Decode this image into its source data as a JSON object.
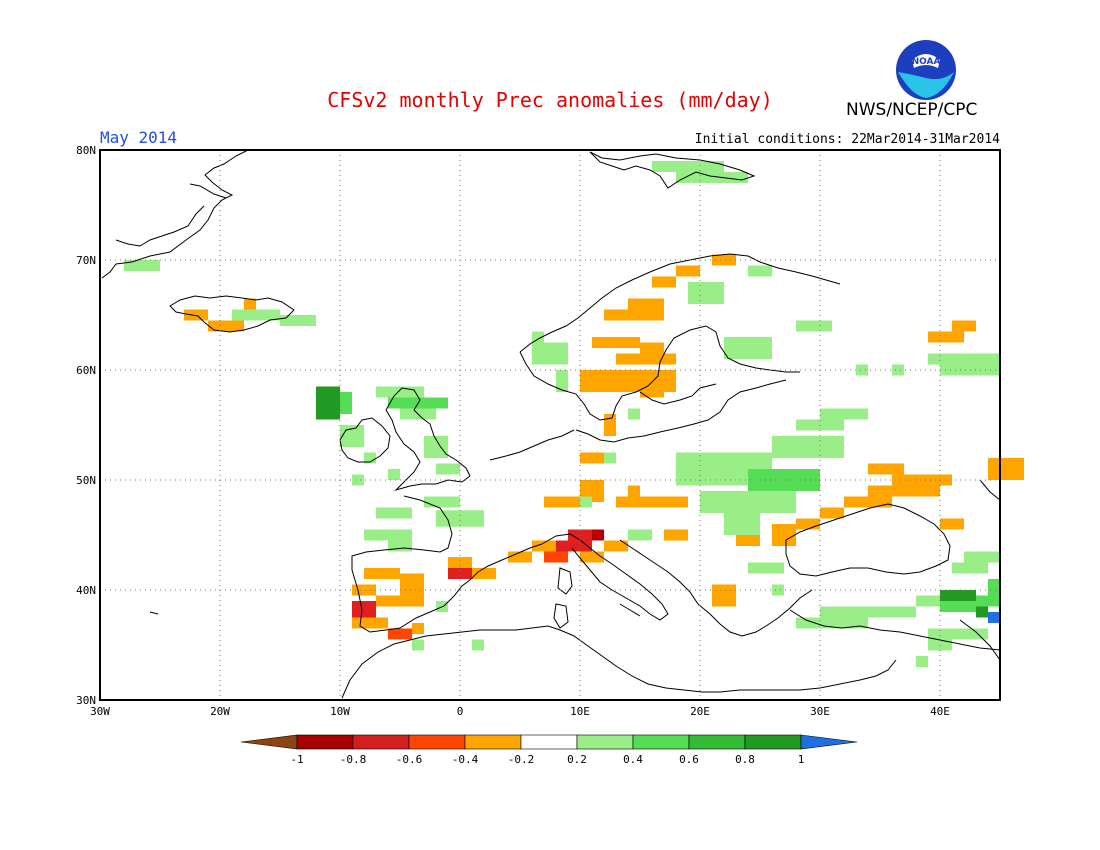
{
  "header": {
    "title": "CFSv2 monthly Prec anomalies (mm/day)",
    "org": "NWS/NCEP/CPC",
    "logo_text": "NOAA",
    "month": "May 2014",
    "initial_conditions": "Initial conditions: 22Mar2014-31Mar2014"
  },
  "map": {
    "lon_range": [
      -30,
      45
    ],
    "lat_range": [
      30,
      80
    ],
    "lat_ticks": [
      "30N",
      "40N",
      "50N",
      "60N",
      "70N",
      "80N"
    ],
    "lon_ticks": [
      "30W",
      "20W",
      "10W",
      "0",
      "10E",
      "20E",
      "30E",
      "40E"
    ],
    "grid": true,
    "anomaly_cells": [
      {
        "lon": -28,
        "lat": 69.5,
        "w": 3,
        "h": 1,
        "c": 4
      },
      {
        "lon": -23,
        "lat": 65,
        "w": 2,
        "h": 1,
        "c": 1
      },
      {
        "lon": -21,
        "lat": 64,
        "w": 3,
        "h": 1,
        "c": 1
      },
      {
        "lon": -19,
        "lat": 65,
        "w": 4,
        "h": 1,
        "c": 4
      },
      {
        "lon": -15,
        "lat": 64.5,
        "w": 3,
        "h": 1,
        "c": 4
      },
      {
        "lon": -7,
        "lat": 58,
        "w": 4,
        "h": 1,
        "c": 4
      },
      {
        "lon": -6,
        "lat": 57,
        "w": 5,
        "h": 1,
        "c": 5
      },
      {
        "lon": -5,
        "lat": 56,
        "w": 3,
        "h": 1,
        "c": 4
      },
      {
        "lon": -3,
        "lat": 53,
        "w": 2,
        "h": 2,
        "c": 4
      },
      {
        "lon": -2,
        "lat": 51,
        "w": 2,
        "h": 1,
        "c": 4
      },
      {
        "lon": -6,
        "lat": 50.5,
        "w": 1,
        "h": 1,
        "c": 4
      },
      {
        "lon": -3,
        "lat": 48,
        "w": 3,
        "h": 1,
        "c": 4
      },
      {
        "lon": -2,
        "lat": 46.5,
        "w": 4,
        "h": 1.5,
        "c": 4
      },
      {
        "lon": -8,
        "lat": 41.5,
        "w": 3,
        "h": 1,
        "c": 1
      },
      {
        "lon": -9,
        "lat": 40,
        "w": 2,
        "h": 1,
        "c": 1
      },
      {
        "lon": -9,
        "lat": 38,
        "w": 2,
        "h": 2,
        "c": 0
      },
      {
        "lon": -7,
        "lat": 39,
        "w": 4,
        "h": 1,
        "c": 1
      },
      {
        "lon": -5,
        "lat": 40,
        "w": 2,
        "h": 3,
        "c": 1
      },
      {
        "lon": -9,
        "lat": 37,
        "w": 3,
        "h": 1,
        "c": 1
      },
      {
        "lon": -6,
        "lat": 36,
        "w": 2,
        "h": 1,
        "c": 2
      },
      {
        "lon": -4,
        "lat": 36.5,
        "w": 1,
        "h": 1,
        "c": 1
      },
      {
        "lon": -1,
        "lat": 41.5,
        "w": 2,
        "h": 1,
        "c": 0
      },
      {
        "lon": -1,
        "lat": 42.5,
        "w": 2,
        "h": 1,
        "c": 1
      },
      {
        "lon": 1,
        "lat": 41.5,
        "w": 2,
        "h": 1,
        "c": 1
      },
      {
        "lon": -2,
        "lat": 38.5,
        "w": 1,
        "h": 1,
        "c": 4
      },
      {
        "lon": 1,
        "lat": 35,
        "w": 1,
        "h": 1,
        "c": 4
      },
      {
        "lon": 4,
        "lat": 43,
        "w": 2,
        "h": 1,
        "c": 1
      },
      {
        "lon": 6,
        "lat": 44,
        "w": 2,
        "h": 1,
        "c": 1
      },
      {
        "lon": 7,
        "lat": 43,
        "w": 2,
        "h": 1,
        "c": 2
      },
      {
        "lon": 8,
        "lat": 44,
        "w": 3,
        "h": 1,
        "c": 0
      },
      {
        "lon": 9,
        "lat": 45,
        "w": 3,
        "h": 1,
        "c": 0
      },
      {
        "lon": 11,
        "lat": 45,
        "w": 1,
        "h": 1,
        "c": -1
      },
      {
        "lon": 10,
        "lat": 43,
        "w": 2,
        "h": 1,
        "c": 1
      },
      {
        "lon": 12,
        "lat": 44,
        "w": 2,
        "h": 1,
        "c": 1
      },
      {
        "lon": 14,
        "lat": 45,
        "w": 2,
        "h": 1,
        "c": 4
      },
      {
        "lon": 7,
        "lat": 48,
        "w": 4,
        "h": 1,
        "c": 1
      },
      {
        "lon": 10,
        "lat": 49,
        "w": 2,
        "h": 2,
        "c": 1
      },
      {
        "lon": 10,
        "lat": 48,
        "w": 1,
        "h": 1,
        "c": 4
      },
      {
        "lon": 13,
        "lat": 48,
        "w": 6,
        "h": 1,
        "c": 1
      },
      {
        "lon": 14,
        "lat": 49,
        "w": 1,
        "h": 1,
        "c": 1
      },
      {
        "lon": 10,
        "lat": 52,
        "w": 2,
        "h": 1,
        "c": 1
      },
      {
        "lon": 12,
        "lat": 55,
        "w": 1,
        "h": 2,
        "c": 1
      },
      {
        "lon": 10,
        "lat": 59,
        "w": 8,
        "h": 2,
        "c": 1
      },
      {
        "lon": 13,
        "lat": 61,
        "w": 5,
        "h": 1,
        "c": 1
      },
      {
        "lon": 15,
        "lat": 62,
        "w": 2,
        "h": 1,
        "c": 1
      },
      {
        "lon": 11,
        "lat": 62.5,
        "w": 4,
        "h": 1,
        "c": 1
      },
      {
        "lon": 12,
        "lat": 65,
        "w": 5,
        "h": 1,
        "c": 1
      },
      {
        "lon": 14,
        "lat": 66,
        "w": 3,
        "h": 1,
        "c": 1
      },
      {
        "lon": 16,
        "lat": 68,
        "w": 2,
        "h": 1,
        "c": 1
      },
      {
        "lon": 18,
        "lat": 69,
        "w": 2,
        "h": 1,
        "c": 1
      },
      {
        "lon": 21,
        "lat": 70,
        "w": 2,
        "h": 1,
        "c": 1
      },
      {
        "lon": 15,
        "lat": 58,
        "w": 2,
        "h": 1,
        "c": 1
      },
      {
        "lon": 17,
        "lat": 45,
        "w": 2,
        "h": 1,
        "c": 1
      },
      {
        "lon": 21,
        "lat": 39.5,
        "w": 2,
        "h": 2,
        "c": 1
      },
      {
        "lon": 23,
        "lat": 45,
        "w": 2,
        "h": 2,
        "c": 1
      },
      {
        "lon": 26,
        "lat": 45,
        "w": 2,
        "h": 2,
        "c": 1
      },
      {
        "lon": 28,
        "lat": 46,
        "w": 2,
        "h": 1,
        "c": 1
      },
      {
        "lon": 30,
        "lat": 47,
        "w": 2,
        "h": 1,
        "c": 1
      },
      {
        "lon": 32,
        "lat": 48,
        "w": 4,
        "h": 1,
        "c": 1
      },
      {
        "lon": 34,
        "lat": 49,
        "w": 6,
        "h": 1,
        "c": 1
      },
      {
        "lon": 36,
        "lat": 50,
        "w": 5,
        "h": 1,
        "c": 1
      },
      {
        "lon": 34,
        "lat": 51,
        "w": 3,
        "h": 1,
        "c": 1
      },
      {
        "lon": 40,
        "lat": 46,
        "w": 2,
        "h": 1,
        "c": 1
      },
      {
        "lon": 44,
        "lat": 51,
        "w": 3,
        "h": 2,
        "c": 1
      },
      {
        "lon": 39,
        "lat": 63,
        "w": 3,
        "h": 1,
        "c": 1
      },
      {
        "lon": 41,
        "lat": 64,
        "w": 2,
        "h": 1,
        "c": 1
      },
      {
        "lon": -18,
        "lat": 66,
        "w": 1,
        "h": 1,
        "c": 1
      },
      {
        "lon": -12,
        "lat": 57,
        "w": 2,
        "h": 3,
        "c": 6
      },
      {
        "lon": -10,
        "lat": 57,
        "w": 1,
        "h": 2,
        "c": 5
      },
      {
        "lon": -10,
        "lat": 54,
        "w": 2,
        "h": 2,
        "c": 4
      },
      {
        "lon": -8,
        "lat": 52,
        "w": 1,
        "h": 1,
        "c": 4
      },
      {
        "lon": -9,
        "lat": 50,
        "w": 1,
        "h": 1,
        "c": 4
      },
      {
        "lon": -7,
        "lat": 47,
        "w": 3,
        "h": 1,
        "c": 4
      },
      {
        "lon": -8,
        "lat": 45,
        "w": 4,
        "h": 1,
        "c": 4
      },
      {
        "lon": -6,
        "lat": 44,
        "w": 2,
        "h": 1,
        "c": 4
      },
      {
        "lon": -4,
        "lat": 35,
        "w": 1,
        "h": 1,
        "c": 4
      },
      {
        "lon": 6,
        "lat": 62,
        "w": 1,
        "h": 3,
        "c": 4
      },
      {
        "lon": 7,
        "lat": 61,
        "w": 2,
        "h": 1,
        "c": 4
      },
      {
        "lon": 18,
        "lat": 51,
        "w": 8,
        "h": 3,
        "c": 4
      },
      {
        "lon": 24,
        "lat": 50,
        "w": 6,
        "h": 2,
        "c": 5
      },
      {
        "lon": 26,
        "lat": 53,
        "w": 6,
        "h": 2,
        "c": 4
      },
      {
        "lon": 28,
        "lat": 55,
        "w": 4,
        "h": 1,
        "c": 4
      },
      {
        "lon": 30,
        "lat": 56,
        "w": 4,
        "h": 1,
        "c": 4
      },
      {
        "lon": 20,
        "lat": 48,
        "w": 8,
        "h": 2,
        "c": 4
      },
      {
        "lon": 22,
        "lat": 46,
        "w": 3,
        "h": 2,
        "c": 4
      },
      {
        "lon": 24,
        "lat": 42,
        "w": 3,
        "h": 1,
        "c": 4
      },
      {
        "lon": 26,
        "lat": 40,
        "w": 1,
        "h": 1,
        "c": 4
      },
      {
        "lon": 30,
        "lat": 38,
        "w": 8,
        "h": 1,
        "c": 4
      },
      {
        "lon": 28,
        "lat": 37,
        "w": 6,
        "h": 1,
        "c": 4
      },
      {
        "lon": 36,
        "lat": 38,
        "w": 2,
        "h": 1,
        "c": 4
      },
      {
        "lon": 38,
        "lat": 39,
        "w": 2,
        "h": 1,
        "c": 4
      },
      {
        "lon": 40,
        "lat": 38.5,
        "w": 3,
        "h": 1,
        "c": 5
      },
      {
        "lon": 40,
        "lat": 39.5,
        "w": 3,
        "h": 1,
        "c": 6
      },
      {
        "lon": 43,
        "lat": 39,
        "w": 2,
        "h": 1,
        "c": 5
      },
      {
        "lon": 43,
        "lat": 38,
        "w": 1,
        "h": 1,
        "c": 6
      },
      {
        "lon": 44,
        "lat": 37.5,
        "w": 1,
        "h": 1,
        "c": 7
      },
      {
        "lon": 41,
        "lat": 42,
        "w": 3,
        "h": 1,
        "c": 4
      },
      {
        "lon": 42,
        "lat": 43,
        "w": 3,
        "h": 1,
        "c": 4
      },
      {
        "lon": 44,
        "lat": 40,
        "w": 1,
        "h": 2,
        "c": 5
      },
      {
        "lon": 39,
        "lat": 36,
        "w": 5,
        "h": 1,
        "c": 4
      },
      {
        "lon": 39,
        "lat": 35,
        "w": 2,
        "h": 1,
        "c": 4
      },
      {
        "lon": 38,
        "lat": 33.5,
        "w": 1,
        "h": 1,
        "c": 4
      },
      {
        "lon": 33,
        "lat": 60,
        "w": 1,
        "h": 1,
        "c": 4
      },
      {
        "lon": 36,
        "lat": 60,
        "w": 1,
        "h": 1,
        "c": 4
      },
      {
        "lon": 39,
        "lat": 61,
        "w": 6,
        "h": 1,
        "c": 4
      },
      {
        "lon": 40,
        "lat": 60,
        "w": 5,
        "h": 1,
        "c": 4
      },
      {
        "lon": 22,
        "lat": 62,
        "w": 4,
        "h": 2,
        "c": 4
      },
      {
        "lon": 28,
        "lat": 64,
        "w": 3,
        "h": 1,
        "c": 4
      },
      {
        "lon": 19,
        "lat": 67,
        "w": 3,
        "h": 2,
        "c": 4
      },
      {
        "lon": 24,
        "lat": 69,
        "w": 2,
        "h": 1,
        "c": 4
      },
      {
        "lon": 16,
        "lat": 78.5,
        "w": 6,
        "h": 1,
        "c": 4
      },
      {
        "lon": 18,
        "lat": 77.5,
        "w": 6,
        "h": 1,
        "c": 4
      },
      {
        "lon": 7,
        "lat": 62,
        "w": 2,
        "h": 1,
        "c": 4
      },
      {
        "lon": 8,
        "lat": 59,
        "w": 1,
        "h": 2,
        "c": 4
      },
      {
        "lon": 12,
        "lat": 52,
        "w": 1,
        "h": 1,
        "c": 4
      },
      {
        "lon": 14,
        "lat": 56,
        "w": 1,
        "h": 1,
        "c": 4
      }
    ]
  },
  "colorbar": {
    "labels": [
      "-1",
      "-0.8",
      "-0.6",
      "-0.4",
      "-0.2",
      "0.2",
      "0.4",
      "0.6",
      "0.8",
      "1"
    ],
    "colors": [
      "#8b4513",
      "#a80000",
      "#d41f1f",
      "#ff4500",
      "#ffa500",
      "#ffffff",
      "#99ee88",
      "#55dd55",
      "#33bb33",
      "#229922",
      "#1e6fe0"
    ]
  }
}
